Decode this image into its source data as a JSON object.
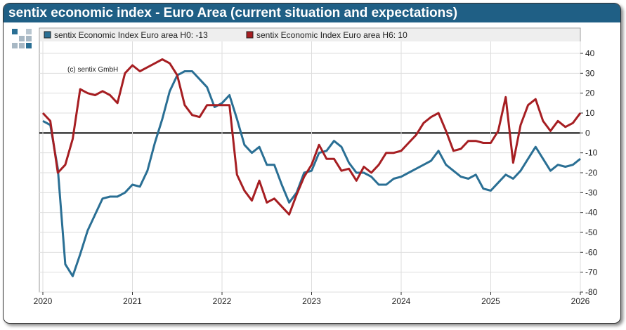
{
  "title": "sentix economic index - Euro Area (current situation and expectations)",
  "copyright": "(c) sentix GmbH",
  "colors": {
    "h0": "#2a6f94",
    "h6": "#a61e22",
    "header": "#1f5f85"
  },
  "chart_data": {
    "type": "line",
    "title": "sentix economic index - Euro Area (current situation and expectations)",
    "xlim": [
      2020,
      2026
    ],
    "ylim": [
      -80,
      40
    ],
    "xticks": [
      "2020",
      "2021",
      "2022",
      "2023",
      "2024",
      "2025",
      "2026"
    ],
    "yticks": [
      40,
      30,
      20,
      10,
      0,
      -10,
      -20,
      -30,
      -40,
      -50,
      -60,
      -70,
      -80
    ],
    "grid": true,
    "legend": "top",
    "series": [
      {
        "name": "sentix Economic Index Euro area H0: -13",
        "color": "#2a6f94",
        "values": [
          6,
          4,
          -18,
          -66,
          -72,
          -61,
          -49,
          -41,
          -33,
          -32,
          -32,
          -30,
          -26,
          -27,
          -19,
          -5,
          7,
          21,
          29,
          31,
          31,
          27,
          23,
          13,
          15,
          19,
          7,
          -6,
          -10,
          -7,
          -16,
          -16,
          -26,
          -35,
          -30,
          -20,
          -19,
          -10,
          -9,
          -4,
          -7,
          -15,
          -20,
          -20,
          -22,
          -26,
          -26,
          -23,
          -22,
          -20,
          -18,
          -16,
          -14,
          -9,
          -16,
          -19,
          -22,
          -23,
          -21,
          -28,
          -29,
          -25,
          -21,
          -23,
          -19,
          -13,
          -7,
          -13,
          -19,
          -16,
          -17,
          -16,
          -13
        ]
      },
      {
        "name": "sentix Economic Index Euro area H6: 10",
        "color": "#a61e22",
        "values": [
          10,
          6,
          -20,
          -16,
          -3,
          22,
          20,
          19,
          21,
          19,
          15,
          30,
          34,
          31,
          33,
          35,
          37,
          35,
          29,
          14,
          9,
          8,
          14,
          14,
          14,
          14,
          -21,
          -29,
          -34,
          -24,
          -35,
          -33,
          -37,
          -41,
          -31,
          -22,
          -16,
          -6,
          -13,
          -13,
          -19,
          -18,
          -24,
          -17,
          -20,
          -16,
          -10,
          -10,
          -9,
          -5,
          -1,
          5,
          8,
          10,
          1,
          -9,
          -8,
          -4,
          -4,
          -5,
          -5,
          1,
          18,
          -15,
          4,
          14,
          17,
          6,
          1,
          6,
          3,
          5,
          10
        ]
      }
    ],
    "x_start": 2020,
    "x_step_months": 1
  }
}
